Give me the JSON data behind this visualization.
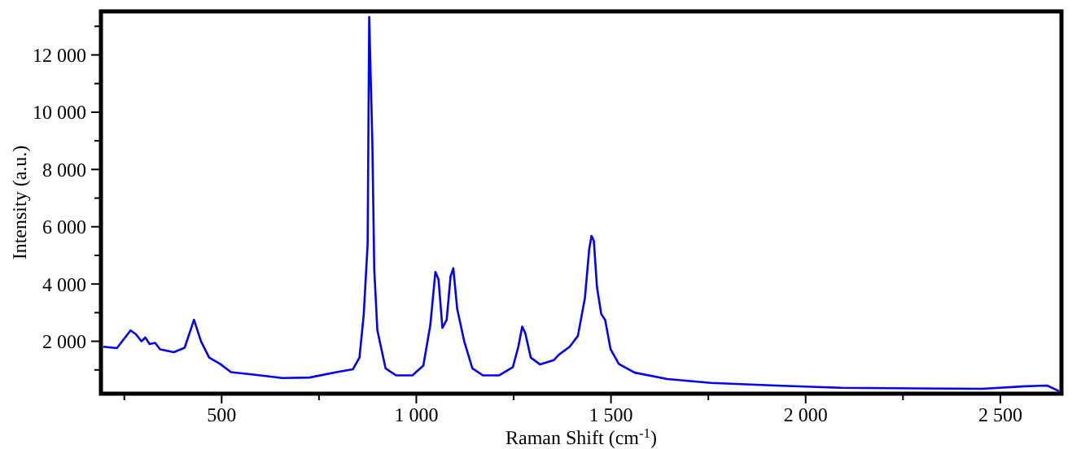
{
  "chart_data": {
    "type": "line",
    "xlabel": "Raman Shift (cm$^{-1}$)",
    "ylabel": "Intensity (a.u.)",
    "xlim": [
      190,
      2657
    ],
    "ylim": [
      170,
      13520
    ],
    "xticks": [
      {
        "value": 250,
        "label": null
      },
      {
        "value": 500,
        "label": "500"
      },
      {
        "value": 750,
        "label": null
      },
      {
        "value": 1000,
        "label": "1 000"
      },
      {
        "value": 1250,
        "label": null
      },
      {
        "value": 1500,
        "label": "1 500"
      },
      {
        "value": 1750,
        "label": null
      },
      {
        "value": 2000,
        "label": "2 000"
      },
      {
        "value": 2250,
        "label": null
      },
      {
        "value": 2500,
        "label": "2 500"
      }
    ],
    "yticks": [
      {
        "value": 1000,
        "label": null
      },
      {
        "value": 2000,
        "label": "2 000"
      },
      {
        "value": 3000,
        "label": null
      },
      {
        "value": 4000,
        "label": "4 000"
      },
      {
        "value": 5000,
        "label": null
      },
      {
        "value": 6000,
        "label": "6 000"
      },
      {
        "value": 7000,
        "label": null
      },
      {
        "value": 8000,
        "label": "8 000"
      },
      {
        "value": 9000,
        "label": null
      },
      {
        "value": 10000,
        "label": "10 000"
      },
      {
        "value": 11000,
        "label": null
      },
      {
        "value": 12000,
        "label": "12 000"
      },
      {
        "value": 13000,
        "label": null
      }
    ],
    "grid": false,
    "marker": "none",
    "line_style": "solid",
    "series": [
      {
        "color": "#0000ff",
        "x": [
          196,
          231,
          266,
          280,
          294,
          304,
          315,
          329,
          342,
          377,
          405,
          429,
          447,
          468,
          496,
          524,
          586,
          656,
          726,
          795,
          837,
          854,
          865,
          875,
          879,
          887,
          892,
          900,
          921,
          948,
          990,
          1018,
          1036,
          1049,
          1057,
          1067,
          1078,
          1088,
          1095,
          1105,
          1123,
          1144,
          1171,
          1213,
          1248,
          1262,
          1272,
          1280,
          1294,
          1318,
          1353,
          1366,
          1394,
          1415,
          1433,
          1444,
          1450,
          1456,
          1464,
          1475,
          1485,
          1499,
          1520,
          1561,
          1645,
          1757,
          1924,
          2091,
          2286,
          2453,
          2564,
          2620,
          2651
        ],
        "values": [
          1810,
          1760,
          2380,
          2245,
          2000,
          2130,
          1905,
          1945,
          1720,
          1620,
          1775,
          2750,
          2000,
          1430,
          1210,
          925,
          830,
          715,
          735,
          925,
          1020,
          1430,
          2945,
          5400,
          13330,
          9000,
          4500,
          2380,
          1055,
          810,
          810,
          1150,
          2570,
          4420,
          4170,
          2470,
          2750,
          4270,
          4550,
          3130,
          2000,
          1055,
          810,
          810,
          1095,
          1810,
          2510,
          2280,
          1430,
          1190,
          1340,
          1530,
          1810,
          2190,
          3510,
          5210,
          5680,
          5500,
          3890,
          2950,
          2750,
          1720,
          1210,
          905,
          680,
          545,
          455,
          375,
          355,
          340,
          430,
          455,
          260
        ]
      }
    ]
  }
}
